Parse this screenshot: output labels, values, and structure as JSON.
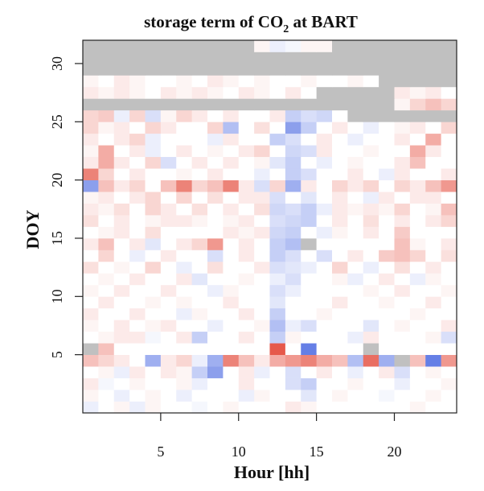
{
  "chart_data": {
    "type": "heatmap",
    "title": {
      "text": "storage term of CO",
      "subscript": "2",
      "suffix": " at BART"
    },
    "xlabel": "Hour  [hh]",
    "ylabel": "DOY",
    "xlim": [
      0,
      24
    ],
    "ylim": [
      0,
      32
    ],
    "xticks": [
      "5",
      "10",
      "15",
      "20"
    ],
    "yticks": [
      "5",
      "10",
      "15",
      "20",
      "25",
      "30"
    ],
    "missing_color": "#c0c0c0",
    "low_color": "#3f5fe0",
    "high_color": "#e0301e",
    "colorscale": [
      -1,
      1
    ],
    "rows": [
      {
        "doy": 1,
        "values": [
          -0.1,
          0.0,
          0.05,
          -0.1,
          0.05,
          0.0,
          0.0,
          -0.05,
          0.0,
          0.05,
          0.0,
          0.0,
          0.0,
          0.1,
          0.05,
          0.0,
          0.0,
          0.0,
          0.0,
          0.0,
          0.0,
          0.05,
          0.0,
          0.0
        ]
      },
      {
        "doy": 2,
        "values": [
          0.05,
          0.0,
          -0.1,
          0.0,
          0.05,
          0.0,
          -0.1,
          0.0,
          0.0,
          0.0,
          -0.1,
          0.05,
          0.0,
          0.0,
          -0.15,
          0.0,
          0.05,
          0.0,
          0.0,
          -0.05,
          0.0,
          0.0,
          0.05,
          0.0
        ]
      },
      {
        "doy": 3,
        "values": [
          0.1,
          -0.05,
          0.0,
          0.05,
          0.0,
          0.0,
          0.05,
          -0.1,
          0.0,
          0.0,
          0.1,
          0.0,
          0.0,
          -0.2,
          -0.3,
          0.0,
          0.0,
          0.05,
          0.0,
          0.0,
          -0.1,
          0.0,
          0.0,
          0.05
        ]
      },
      {
        "doy": 4,
        "values": [
          0.0,
          0.05,
          -0.1,
          0.1,
          0.0,
          0.1,
          0.05,
          -0.3,
          -0.6,
          0.0,
          0.1,
          -0.1,
          0.0,
          -0.2,
          0.0,
          0.1,
          0.0,
          -0.1,
          0.0,
          0.1,
          -0.2,
          0.0,
          0.05,
          0.0
        ]
      },
      {
        "doy": 5,
        "values": [
          0.3,
          0.2,
          0.1,
          0.0,
          -0.5,
          0.1,
          0.2,
          -0.1,
          -0.5,
          0.6,
          0.3,
          0.1,
          0.4,
          0.5,
          0.6,
          0.4,
          0.3,
          -0.4,
          0.7,
          -0.5,
          null,
          0.3,
          -0.8,
          0.5
        ]
      },
      {
        "doy": 6,
        "values": [
          null,
          0.3,
          0.0,
          0.0,
          0.0,
          0.0,
          0.0,
          0.0,
          0.0,
          0.0,
          0.0,
          0.0,
          0.8,
          0.0,
          -0.8,
          0.0,
          0.0,
          0.0,
          null,
          0.0,
          0.0,
          0.0,
          0.0,
          0.0
        ]
      },
      {
        "doy": 7,
        "values": [
          0.0,
          0.05,
          0.1,
          0.1,
          -0.05,
          0.0,
          0.1,
          -0.3,
          0.0,
          0.0,
          0.1,
          0.0,
          -0.3,
          0.05,
          0.0,
          0.0,
          0.0,
          -0.1,
          0.1,
          0.0,
          0.0,
          0.0,
          0.05,
          -0.2
        ]
      },
      {
        "doy": 8,
        "values": [
          0.05,
          0.0,
          0.1,
          0.0,
          0.05,
          0.1,
          0.0,
          0.0,
          -0.1,
          0.0,
          0.0,
          0.05,
          -0.4,
          -0.1,
          -0.2,
          0.0,
          0.0,
          0.0,
          -0.15,
          0.0,
          0.05,
          0.0,
          0.0,
          0.1
        ]
      },
      {
        "doy": 9,
        "values": [
          0.1,
          0.0,
          0.0,
          0.1,
          0.0,
          0.0,
          -0.1,
          0.05,
          0.0,
          0.0,
          0.1,
          0.0,
          -0.3,
          0.0,
          0.0,
          0.05,
          0.0,
          0.0,
          0.0,
          0.0,
          0.0,
          0.05,
          0.0,
          0.0
        ]
      },
      {
        "doy": 10,
        "values": [
          0.0,
          0.1,
          0.0,
          0.0,
          0.05,
          0.0,
          0.05,
          0.0,
          0.0,
          0.1,
          0.0,
          0.0,
          -0.15,
          0.0,
          0.0,
          0.0,
          0.1,
          0.0,
          0.0,
          0.05,
          0.0,
          0.0,
          0.1,
          0.0
        ]
      },
      {
        "doy": 11,
        "values": [
          0.05,
          0.0,
          0.1,
          0.0,
          0.0,
          0.1,
          0.0,
          0.0,
          -0.1,
          0.05,
          0.0,
          0.0,
          -0.2,
          -0.1,
          0.0,
          0.0,
          0.0,
          0.0,
          0.05,
          0.0,
          0.1,
          0.0,
          0.0,
          0.05
        ]
      },
      {
        "doy": 12,
        "values": [
          0.0,
          0.05,
          0.0,
          0.1,
          0.0,
          0.0,
          0.1,
          -0.15,
          0.0,
          0.0,
          0.05,
          0.0,
          -0.1,
          -0.2,
          0.0,
          0.0,
          0.05,
          -0.1,
          0.0,
          0.1,
          0.0,
          -0.1,
          0.05,
          0.0
        ]
      },
      {
        "doy": 13,
        "values": [
          0.15,
          0.0,
          0.05,
          0.0,
          0.2,
          0.0,
          -0.1,
          0.0,
          0.15,
          0.0,
          0.0,
          0.1,
          -0.2,
          -0.15,
          -0.1,
          0.0,
          0.2,
          0.0,
          -0.1,
          0.0,
          0.15,
          0.0,
          0.1,
          0.0
        ]
      },
      {
        "doy": 14,
        "values": [
          0.0,
          0.2,
          0.0,
          -0.1,
          0.0,
          0.1,
          0.0,
          0.0,
          -0.2,
          0.0,
          0.1,
          0.0,
          -0.3,
          -0.2,
          0.0,
          -0.2,
          0.0,
          0.1,
          0.0,
          0.25,
          0.3,
          0.2,
          0.0,
          0.15
        ]
      },
      {
        "doy": 15,
        "values": [
          0.1,
          0.3,
          0.0,
          0.1,
          -0.15,
          0.0,
          0.1,
          0.2,
          0.5,
          0.0,
          0.1,
          0.0,
          -0.3,
          -0.4,
          null,
          0.0,
          0.0,
          0.0,
          0.0,
          0.0,
          0.3,
          0.05,
          0.0,
          0.1
        ]
      },
      {
        "doy": 16,
        "values": [
          0.0,
          0.05,
          0.1,
          0.0,
          0.15,
          0.0,
          0.0,
          0.0,
          0.0,
          0.1,
          0.05,
          0.1,
          -0.25,
          -0.3,
          0.0,
          -0.1,
          0.05,
          0.0,
          0.1,
          0.0,
          0.25,
          0.0,
          0.0,
          0.0
        ]
      },
      {
        "doy": 17,
        "values": [
          0.15,
          0.0,
          0.1,
          0.0,
          0.05,
          0.1,
          0.1,
          0.05,
          0.0,
          0.05,
          0.1,
          0.0,
          -0.2,
          -0.25,
          -0.3,
          0.0,
          0.1,
          0.0,
          0.15,
          0.0,
          0.1,
          0.0,
          0.1,
          0.2
        ]
      },
      {
        "doy": 18,
        "values": [
          0.1,
          0.05,
          0.15,
          0.0,
          0.2,
          0.1,
          0.0,
          0.15,
          0.0,
          0.1,
          0.0,
          0.15,
          -0.25,
          -0.2,
          -0.3,
          -0.1,
          0.1,
          0.05,
          0.1,
          0.05,
          0.2,
          0.0,
          0.05,
          0.3
        ]
      },
      {
        "doy": 19,
        "values": [
          0.05,
          0.1,
          0.0,
          0.1,
          0.2,
          0.0,
          0.2,
          0.0,
          0.15,
          0.0,
          0.1,
          0.1,
          -0.2,
          0.0,
          -0.15,
          0.0,
          0.1,
          0.0,
          -0.1,
          0.1,
          0.0,
          0.1,
          0.1,
          0.0
        ]
      },
      {
        "doy": 20,
        "values": [
          -0.6,
          0.3,
          0.1,
          0.2,
          0.0,
          0.3,
          0.6,
          0.2,
          0.3,
          0.6,
          0.1,
          -0.2,
          0.2,
          -0.5,
          0.1,
          0.0,
          0.2,
          0.1,
          0.2,
          0.0,
          0.2,
          0.1,
          0.3,
          0.5
        ]
      },
      {
        "doy": 21,
        "values": [
          0.6,
          0.2,
          0.0,
          0.1,
          0.0,
          0.0,
          0.05,
          0.0,
          0.1,
          0.0,
          0.0,
          -0.1,
          0.0,
          -0.3,
          -0.2,
          0.0,
          0.0,
          0.1,
          0.0,
          -0.1,
          0.1,
          0.0,
          0.0,
          0.1
        ]
      },
      {
        "doy": 22,
        "values": [
          0.1,
          0.4,
          0.1,
          0.0,
          0.2,
          -0.2,
          0.0,
          0.1,
          0.0,
          0.1,
          0.0,
          0.05,
          -0.15,
          -0.3,
          0.0,
          -0.1,
          0.0,
          0.05,
          0.0,
          0.0,
          0.1,
          0.3,
          0.0,
          0.0
        ]
      },
      {
        "doy": 23,
        "values": [
          0.05,
          0.4,
          0.0,
          0.1,
          -0.1,
          0.0,
          0.1,
          0.0,
          0.05,
          0.0,
          0.1,
          0.2,
          0.0,
          -0.25,
          -0.2,
          0.1,
          0.0,
          0.0,
          0.05,
          0.0,
          0.0,
          0.4,
          0.1,
          0.0
        ]
      },
      {
        "doy": 24,
        "values": [
          0.1,
          0.0,
          0.1,
          0.2,
          -0.1,
          0.0,
          0.0,
          0.0,
          -0.1,
          0.1,
          0.0,
          0.0,
          -0.3,
          -0.2,
          0.0,
          0.1,
          0.0,
          -0.1,
          0.0,
          0.0,
          0.1,
          0.0,
          0.4,
          0.0
        ]
      },
      {
        "doy": 25,
        "values": [
          0.2,
          0.05,
          0.1,
          0.0,
          0.2,
          0.1,
          0.0,
          0.0,
          0.2,
          -0.4,
          0.0,
          0.15,
          0.0,
          -0.6,
          -0.3,
          0.0,
          0.1,
          0.0,
          -0.1,
          0.0,
          0.05,
          0.1,
          0.0,
          0.2
        ]
      },
      {
        "doy": 26,
        "values": [
          0.2,
          0.25,
          -0.1,
          0.2,
          -0.2,
          0.05,
          0.2,
          0.1,
          0.0,
          0.1,
          0.0,
          0.0,
          0.1,
          -0.3,
          -0.2,
          -0.25,
          0.0,
          null,
          null,
          null,
          null,
          null,
          null,
          null
        ]
      },
      {
        "doy": 27,
        "values": [
          null,
          null,
          null,
          null,
          null,
          null,
          null,
          null,
          null,
          null,
          null,
          null,
          null,
          null,
          null,
          null,
          null,
          null,
          null,
          null,
          0.05,
          0.2,
          0.3,
          0.2
        ]
      },
      {
        "doy": 28,
        "values": [
          0.1,
          0.05,
          0.1,
          0.05,
          0.0,
          0.1,
          0.05,
          0.1,
          0.05,
          0.0,
          0.1,
          0.05,
          0.0,
          0.1,
          0.0,
          null,
          null,
          null,
          null,
          null,
          0.1,
          0.05,
          0.1,
          0.0
        ]
      },
      {
        "doy": 29,
        "values": [
          0.05,
          0.0,
          0.1,
          0.05,
          0.0,
          0.0,
          0.05,
          0.0,
          0.1,
          0.05,
          0.0,
          0.05,
          0.0,
          0.0,
          0.05,
          0.0,
          0.0,
          0.05,
          0.0,
          null,
          null,
          null,
          null,
          null
        ]
      },
      {
        "doy": 30,
        "values": [
          null,
          null,
          null,
          null,
          null,
          null,
          null,
          null,
          null,
          null,
          null,
          null,
          null,
          null,
          null,
          null,
          null,
          null,
          null,
          null,
          null,
          null,
          null,
          null
        ]
      },
      {
        "doy": 31,
        "values": [
          null,
          null,
          null,
          null,
          null,
          null,
          null,
          null,
          null,
          null,
          null,
          null,
          null,
          null,
          null,
          null,
          null,
          null,
          null,
          null,
          null,
          null,
          null,
          null
        ]
      },
      {
        "doy": 32,
        "values": [
          null,
          null,
          null,
          null,
          null,
          null,
          null,
          null,
          null,
          null,
          null,
          0.05,
          -0.1,
          -0.05,
          0.05,
          0.05,
          null,
          null,
          null,
          null,
          null,
          null,
          null,
          null
        ]
      }
    ]
  }
}
